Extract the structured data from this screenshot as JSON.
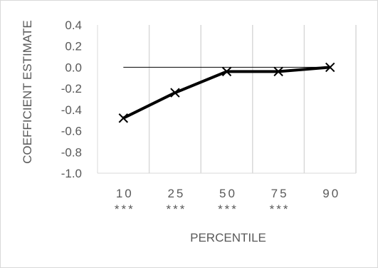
{
  "chart_data": {
    "type": "line",
    "title": "",
    "xlabel": "PERCENTILE",
    "ylabel": "COEFFICIENT ESTIMATE",
    "categories": [
      "10",
      "25",
      "50",
      "75",
      "90"
    ],
    "significance": [
      "***",
      "***",
      "***",
      "***",
      ""
    ],
    "series": [
      {
        "values": [
          -0.48,
          -0.24,
          -0.04,
          -0.04,
          0.0
        ]
      }
    ],
    "ylim": [
      -1.0,
      0.4
    ],
    "yticks": [
      "0.4",
      "0.2",
      "0.0",
      "-0.2",
      "-0.4",
      "-0.6",
      "-0.8",
      "-1.0"
    ],
    "grid": "vertical",
    "legend": "none",
    "colors": {
      "line": "#000000",
      "grid": "#d9d9d9",
      "text": "#595959",
      "zero_line": "#000000"
    }
  }
}
